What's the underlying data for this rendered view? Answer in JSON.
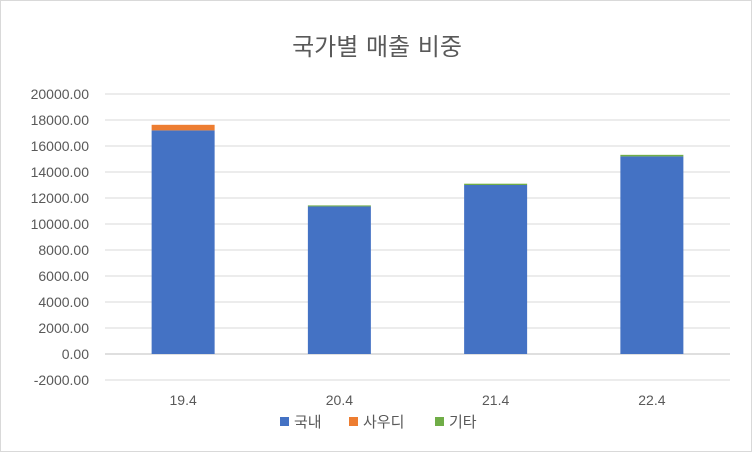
{
  "chart_data": {
    "type": "bar",
    "stacked": true,
    "title": "국가별 매출 비중",
    "xlabel": "",
    "ylabel": "",
    "categories": [
      "19.4",
      "20.4",
      "21.4",
      "22.4"
    ],
    "series": [
      {
        "name": "국내",
        "color": "#4472C4",
        "values": [
          17200,
          11350,
          13000,
          15200
        ]
      },
      {
        "name": "사우디",
        "color": "#ED7D31",
        "values": [
          430,
          0,
          0,
          0
        ]
      },
      {
        "name": "기타",
        "color": "#70AD47",
        "values": [
          0,
          80,
          100,
          120
        ]
      }
    ],
    "ylim": [
      -2000,
      20000
    ],
    "yticks": [
      "20000.00",
      "18000.00",
      "16000.00",
      "14000.00",
      "12000.00",
      "10000.00",
      "8000.00",
      "6000.00",
      "4000.00",
      "2000.00",
      "0.00",
      "-2000.00"
    ],
    "grid": true,
    "legend_position": "bottom"
  }
}
